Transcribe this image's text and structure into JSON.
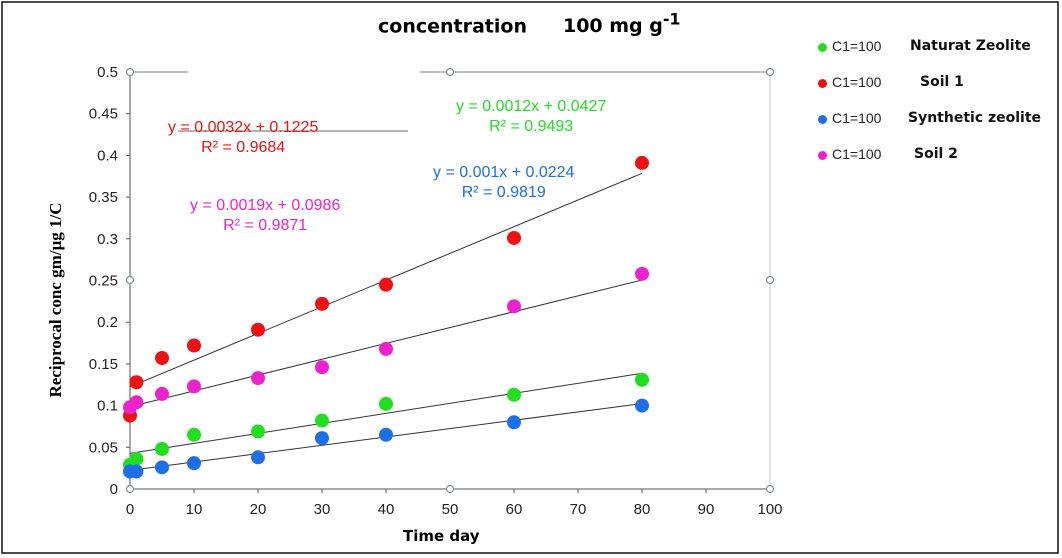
{
  "chart_data": {
    "type": "scatter",
    "title": "concentration",
    "title_unit": "100  mg g",
    "title_unit_sup": "-1",
    "xlabel": "Time   day",
    "ylabel": "Reciprocal conc   gm/µg 1/C",
    "xlim": [
      0,
      100
    ],
    "ylim": [
      0,
      0.5
    ],
    "x_ticks": [
      "0",
      "10",
      "20",
      "30",
      "40",
      "50",
      "60",
      "70",
      "80",
      "90",
      "100"
    ],
    "y_ticks": [
      "0",
      "0.05",
      "0.1",
      "0.15",
      "0.2",
      "0.25",
      "0.3",
      "0.35",
      "0.4",
      "0.45",
      "0.5"
    ],
    "grid": false,
    "legend_position": "right",
    "series": [
      {
        "name": "C1=100",
        "description": "Naturat Zeolite",
        "color": "#22dd22",
        "x": [
          0,
          1,
          5,
          10,
          20,
          30,
          40,
          60,
          80
        ],
        "y": [
          0.029,
          0.036,
          0.048,
          0.065,
          0.069,
          0.082,
          0.102,
          0.113,
          0.131
        ],
        "trendline": {
          "slope": 0.0012,
          "intercept": 0.0427,
          "x_range": [
            0,
            80
          ]
        },
        "equation": "y = 0.0012x + 0.0427",
        "r2": "R² = 0.9493"
      },
      {
        "name": "C1=100",
        "description": "Soil 1",
        "color": "#ee1111",
        "x": [
          0,
          1,
          5,
          10,
          20,
          30,
          40,
          60,
          80
        ],
        "y": [
          0.088,
          0.128,
          0.157,
          0.172,
          0.191,
          0.222,
          0.245,
          0.301,
          0.391
        ],
        "trendline": {
          "slope": 0.0032,
          "intercept": 0.1225,
          "x_range": [
            0,
            80
          ]
        },
        "equation": "y = 0.0032x + 0.1225",
        "r2": "R² = 0.9684"
      },
      {
        "name": "C1=100",
        "description": "Synthetic zeolite",
        "color": "#1e6fe6",
        "x": [
          0,
          1,
          5,
          10,
          20,
          30,
          40,
          60,
          80
        ],
        "y": [
          0.021,
          0.021,
          0.026,
          0.031,
          0.038,
          0.061,
          0.065,
          0.08,
          0.1
        ],
        "trendline": {
          "slope": 0.001,
          "intercept": 0.0224,
          "x_range": [
            0,
            80
          ]
        },
        "equation": "y = 0.001x + 0.0224",
        "r2": "R² = 0.9819"
      },
      {
        "name": "C1=100",
        "description": "Soil 2",
        "color": "#ee22cc",
        "x": [
          0,
          1,
          5,
          10,
          20,
          30,
          40,
          60,
          80
        ],
        "y": [
          0.098,
          0.104,
          0.114,
          0.123,
          0.133,
          0.146,
          0.168,
          0.219,
          0.258
        ],
        "trendline": {
          "slope": 0.0019,
          "intercept": 0.0986,
          "x_range": [
            0,
            80
          ]
        },
        "equation": "y = 0.0019x + 0.0986",
        "r2": "R² = 0.9871"
      }
    ]
  }
}
